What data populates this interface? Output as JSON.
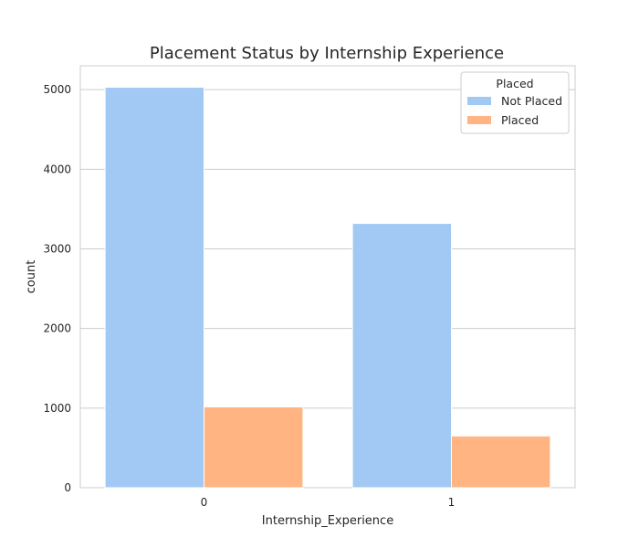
{
  "chart_data": {
    "type": "bar",
    "title": "Placement Status by Internship Experience",
    "xlabel": "Internship_Experience",
    "ylabel": "count",
    "categories": [
      "0",
      "1"
    ],
    "series": [
      {
        "name": "Not Placed",
        "color": "#a1c9f4",
        "values": [
          5030,
          3320
        ]
      },
      {
        "name": "Placed",
        "color": "#ffb482",
        "values": [
          1015,
          650
        ]
      }
    ],
    "ylim": [
      0,
      5300
    ],
    "yticks": [
      0,
      1000,
      2000,
      3000,
      4000,
      5000
    ],
    "grid": true,
    "legend": {
      "title": "Placed",
      "placement": "top-right"
    }
  }
}
